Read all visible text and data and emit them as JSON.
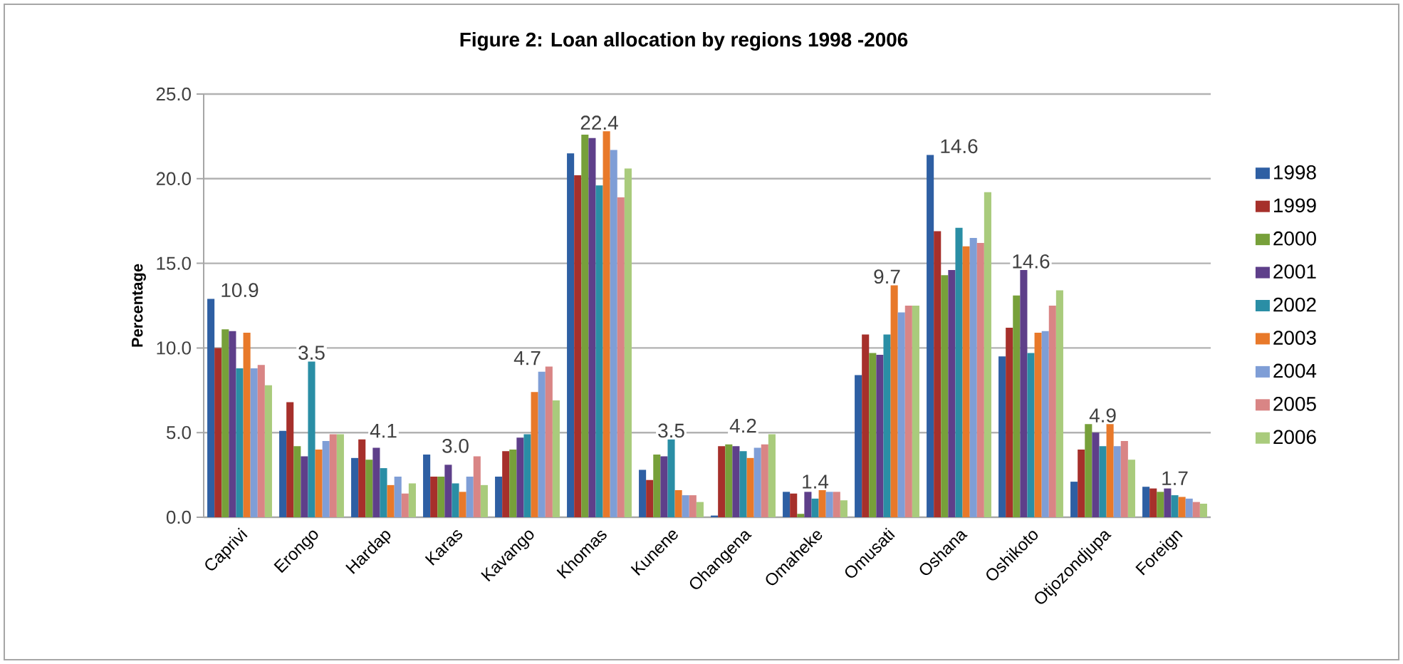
{
  "chart_data": {
    "type": "bar",
    "title": "Figure 2: Loan allocation by regions 1998 -2006",
    "ylabel": "Percentage",
    "categories": [
      "Caprivi",
      "Erongo",
      "Hardap",
      "Karas",
      "Kavango",
      "Khomas",
      "Kunene",
      "Ohangena",
      "Omaheke",
      "Omusati",
      "Oshana",
      "Oshikoto",
      "Otjozondjupa",
      "Foreign"
    ],
    "series": [
      {
        "name": "1998",
        "color": "#2e5fa3",
        "values": [
          12.9,
          5.1,
          3.5,
          3.7,
          2.4,
          21.5,
          2.8,
          0.1,
          1.5,
          8.4,
          21.4,
          9.5,
          2.1,
          1.8
        ]
      },
      {
        "name": "1999",
        "color": "#a6302b",
        "values": [
          10.0,
          6.8,
          4.6,
          2.4,
          3.9,
          20.2,
          2.2,
          4.2,
          1.4,
          10.8,
          16.9,
          11.2,
          4.0,
          1.7
        ]
      },
      {
        "name": "2000",
        "color": "#77a03a",
        "values": [
          11.1,
          4.2,
          3.4,
          2.4,
          4.0,
          22.6,
          3.7,
          4.3,
          0.2,
          9.7,
          14.3,
          13.1,
          5.5,
          1.5
        ]
      },
      {
        "name": "2001",
        "color": "#5e3f8a",
        "values": [
          11.0,
          3.6,
          4.1,
          3.1,
          4.7,
          22.4,
          3.6,
          4.2,
          1.5,
          9.6,
          14.6,
          14.6,
          5.0,
          1.7
        ]
      },
      {
        "name": "2002",
        "color": "#2a8ea5",
        "values": [
          8.8,
          9.2,
          2.9,
          2.0,
          4.9,
          19.6,
          4.6,
          3.9,
          1.1,
          10.8,
          17.1,
          9.7,
          4.2,
          1.3
        ]
      },
      {
        "name": "2003",
        "color": "#e8792a",
        "values": [
          10.9,
          4.0,
          1.9,
          1.5,
          7.4,
          22.8,
          1.6,
          3.5,
          1.6,
          13.7,
          16.0,
          10.9,
          5.5,
          1.2
        ]
      },
      {
        "name": "2004",
        "color": "#7f9ed6",
        "values": [
          8.8,
          4.5,
          2.4,
          2.4,
          8.6,
          21.7,
          1.3,
          4.1,
          1.5,
          12.1,
          16.5,
          11.0,
          4.2,
          1.1
        ]
      },
      {
        "name": "2005",
        "color": "#d98585",
        "values": [
          9.0,
          4.9,
          1.4,
          3.6,
          8.9,
          18.9,
          1.3,
          4.3,
          1.5,
          12.5,
          16.2,
          12.5,
          4.5,
          0.9
        ]
      },
      {
        "name": "2006",
        "color": "#a9cb7c",
        "values": [
          7.8,
          4.9,
          2.0,
          1.9,
          6.9,
          20.6,
          0.9,
          4.9,
          1.0,
          12.5,
          19.2,
          13.4,
          3.4,
          0.8
        ]
      }
    ],
    "ylim": [
      0,
      25
    ],
    "yticks": [
      {
        "value": 0,
        "label": "0.0"
      },
      {
        "value": 5,
        "label": "5.0"
      },
      {
        "value": 10,
        "label": "10.0"
      },
      {
        "value": 15,
        "label": "15.0"
      },
      {
        "value": 20,
        "label": "20.0"
      },
      {
        "value": 25,
        "label": "25.0"
      }
    ],
    "grid": "y",
    "legend": "right",
    "annotations": [
      "10.9",
      "3.5",
      "4.1",
      "3.0",
      "4.7",
      "22.4",
      "3.5",
      "4.2",
      "1.4",
      "9.7",
      "14.6",
      "14.6",
      "4.9",
      "1.7"
    ]
  }
}
